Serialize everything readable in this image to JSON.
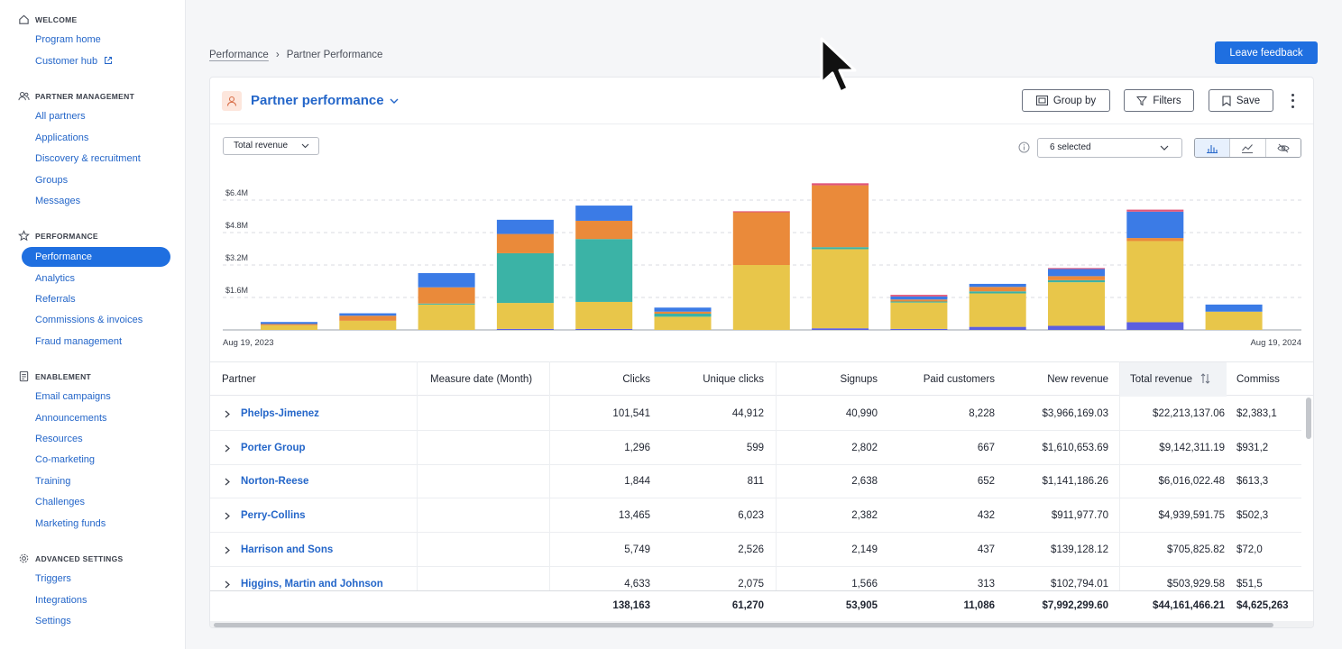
{
  "sidebar": {
    "sections": [
      {
        "title": "WELCOME",
        "items": [
          "Program home",
          "Customer hub"
        ]
      },
      {
        "title": "PARTNER MANAGEMENT",
        "items": [
          "All partners",
          "Applications",
          "Discovery & recruitment",
          "Groups",
          "Messages"
        ]
      },
      {
        "title": "PERFORMANCE",
        "items": [
          "Performance",
          "Analytics",
          "Referrals",
          "Commissions & invoices",
          "Fraud management"
        ]
      },
      {
        "title": "ENABLEMENT",
        "items": [
          "Email campaigns",
          "Announcements",
          "Resources",
          "Co-marketing",
          "Training",
          "Challenges",
          "Marketing funds"
        ]
      },
      {
        "title": "ADVANCED SETTINGS",
        "items": [
          "Triggers",
          "Integrations",
          "Settings"
        ]
      }
    ],
    "active_item": "Performance"
  },
  "breadcrumb": {
    "root": "Performance",
    "separator": "›",
    "current": "Partner Performance"
  },
  "feedback_button": "Leave feedback",
  "report": {
    "title": "Partner performance",
    "group_by": "Group by",
    "filters": "Filters",
    "save": "Save",
    "metric": "Total revenue",
    "series_selected": "6 selected"
  },
  "chart_data": {
    "type": "bar",
    "stacked": true,
    "y_ticks": [
      "$6.4M",
      "$4.8M",
      "$3.2M",
      "$1.6M"
    ],
    "ylim": [
      0,
      7200000
    ],
    "x_start_label": "Aug 19, 2023",
    "x_end_label": "Aug 19, 2024",
    "categories": [
      "1",
      "2",
      "3",
      "4",
      "5",
      "6",
      "7",
      "8",
      "9",
      "10",
      "11",
      "12",
      "13"
    ],
    "colors": [
      "#5b5fe0",
      "#e8c64a",
      "#3bb3a6",
      "#ea8a3a",
      "#3b7be6",
      "#e0567a"
    ],
    "series": [
      {
        "values": [
          0,
          0,
          0,
          50000,
          50000,
          0,
          0,
          80000,
          50000,
          150000,
          200000,
          380000,
          0
        ]
      },
      {
        "values": [
          230000,
          450000,
          1250000,
          1280000,
          1330000,
          650000,
          3200000,
          3900000,
          1300000,
          1650000,
          2150000,
          4000000,
          900000
        ]
      },
      {
        "values": [
          0,
          0,
          50000,
          2450000,
          3100000,
          150000,
          0,
          100000,
          50000,
          100000,
          100000,
          0,
          0
        ]
      },
      {
        "values": [
          60000,
          250000,
          800000,
          950000,
          900000,
          100000,
          2600000,
          3050000,
          100000,
          220000,
          200000,
          150000,
          0
        ]
      },
      {
        "values": [
          100000,
          120000,
          700000,
          700000,
          750000,
          200000,
          0,
          0,
          150000,
          150000,
          350000,
          1300000,
          350000
        ]
      },
      {
        "values": [
          0,
          0,
          0,
          0,
          0,
          0,
          50000,
          100000,
          80000,
          0,
          50000,
          100000,
          0
        ]
      }
    ]
  },
  "table": {
    "columns": [
      "Partner",
      "Measure date (Month)",
      "Clicks",
      "Unique clicks",
      "Signups",
      "Paid customers",
      "New revenue",
      "Total revenue",
      "Commiss"
    ],
    "rows": [
      [
        "Phelps-Jimenez",
        "",
        "101,541",
        "44,912",
        "40,990",
        "8,228",
        "$3,966,169.03",
        "$22,213,137.06",
        "$2,383,1"
      ],
      [
        "Porter Group",
        "",
        "1,296",
        "599",
        "2,802",
        "667",
        "$1,610,653.69",
        "$9,142,311.19",
        "$931,2"
      ],
      [
        "Norton-Reese",
        "",
        "1,844",
        "811",
        "2,638",
        "652",
        "$1,141,186.26",
        "$6,016,022.48",
        "$613,3"
      ],
      [
        "Perry-Collins",
        "",
        "13,465",
        "6,023",
        "2,382",
        "432",
        "$911,977.70",
        "$4,939,591.75",
        "$502,3"
      ],
      [
        "Harrison and Sons",
        "",
        "5,749",
        "2,526",
        "2,149",
        "437",
        "$139,128.12",
        "$705,825.82",
        "$72,0"
      ],
      [
        "Higgins, Martin and Johnson",
        "",
        "4,633",
        "2,075",
        "1,566",
        "313",
        "$102,794.01",
        "$503,929.58",
        "$51,5"
      ]
    ],
    "totals": [
      "",
      "",
      "138,163",
      "61,270",
      "53,905",
      "11,086",
      "$7,992,299.60",
      "$44,161,466.21",
      "$4,625,263"
    ]
  }
}
